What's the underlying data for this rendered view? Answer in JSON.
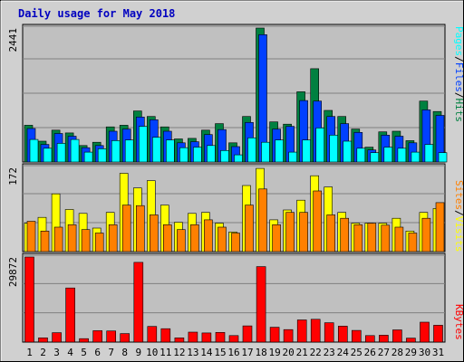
{
  "chart_data": {
    "type": "bar",
    "title": "Daily usage for May 2018",
    "days": [
      "1",
      "2",
      "3",
      "4",
      "5",
      "6",
      "7",
      "8",
      "9",
      "10",
      "11",
      "12",
      "13",
      "14",
      "15",
      "16",
      "17",
      "18",
      "19",
      "20",
      "21",
      "22",
      "23",
      "24",
      "25",
      "26",
      "27",
      "28",
      "29",
      "30",
      "31"
    ],
    "weekend_days": [
      "5",
      "6",
      "12",
      "13",
      "19",
      "20",
      "26",
      "27"
    ],
    "colors": {
      "pages": "#00ffff",
      "files": "#0040ff",
      "hits": "#008040",
      "visits": "#ffff00",
      "sites": "#ff8000",
      "kbytes": "#ff0000",
      "weekday_label": "#000000",
      "weekend_label": "#008040",
      "panel_bg": "#c0c0c0",
      "frame_bg": "#d0d0d0",
      "title": "#0000c0"
    },
    "panels": [
      {
        "name": "hits-files-pages",
        "ymax_label": "2441",
        "ymax": 2441,
        "legend": [
          "Pages",
          "/",
          "Files",
          "/",
          "Hits"
        ],
        "series": [
          {
            "name": "Hits",
            "color_key": "hits",
            "values": [
              670,
              380,
              580,
              530,
              300,
              360,
              640,
              670,
              930,
              830,
              640,
              420,
              430,
              580,
              700,
              350,
              830,
              2441,
              730,
              690,
              1280,
              1700,
              940,
              830,
              600,
              270,
              550,
              560,
              390,
              1110,
              920
            ]
          },
          {
            "name": "Files",
            "color_key": "files",
            "values": [
              610,
              320,
              520,
              470,
              260,
              300,
              560,
              600,
              820,
              770,
              560,
              350,
              370,
              500,
              590,
              280,
              720,
              2320,
              600,
              650,
              1120,
              1110,
              830,
              700,
              540,
              220,
              490,
              470,
              350,
              950,
              850
            ]
          },
          {
            "name": "Pages",
            "color_key": "pages",
            "values": [
              410,
              250,
              340,
              410,
              180,
              240,
              390,
              400,
              650,
              450,
              400,
              260,
              270,
              300,
              210,
              130,
              440,
              360,
              400,
              180,
              400,
              620,
              490,
              380,
              250,
              170,
              270,
              250,
              180,
              320,
              170
            ]
          }
        ]
      },
      {
        "name": "visits-sites",
        "ymax_label": "172",
        "ymax": 172,
        "legend": [
          "Sites",
          "/",
          "Visits"
        ],
        "series": [
          {
            "name": "Visits",
            "color_key": "visits",
            "values": [
              58,
              70,
              118,
              86,
              78,
              48,
              80,
              160,
              130,
              145,
              95,
              60,
              78,
              80,
              58,
              40,
              135,
              170,
              65,
              85,
              105,
              155,
              132,
              80,
              58,
              58,
              58,
              68,
              42,
              80,
              88
            ]
          },
          {
            "name": "Sites",
            "color_key": "sites",
            "values": [
              62,
              42,
              50,
              55,
              45,
              38,
              55,
              95,
              94,
              75,
              55,
              45,
              55,
              65,
              50,
              38,
              95,
              128,
              55,
              80,
              80,
              124,
              75,
              68,
              55,
              58,
              54,
              50,
              38,
              68,
              100
            ]
          }
        ]
      },
      {
        "name": "kbytes",
        "ymax_label": "29872",
        "ymax": 29872,
        "legend": [
          "KBytes"
        ],
        "series": [
          {
            "name": "KBytes",
            "color_key": "kbytes",
            "values": [
              29872,
              1500,
              3300,
              19000,
              1200,
              4000,
              3900,
              3000,
              28000,
              5500,
              4700,
              1500,
              3500,
              3200,
              3400,
              2300,
              5700,
              26500,
              5200,
              4400,
              7800,
              8000,
              6800,
              5600,
              4100,
              2300,
              2400,
              4300,
              1400,
              7000,
              5900
            ]
          }
        ]
      }
    ]
  }
}
